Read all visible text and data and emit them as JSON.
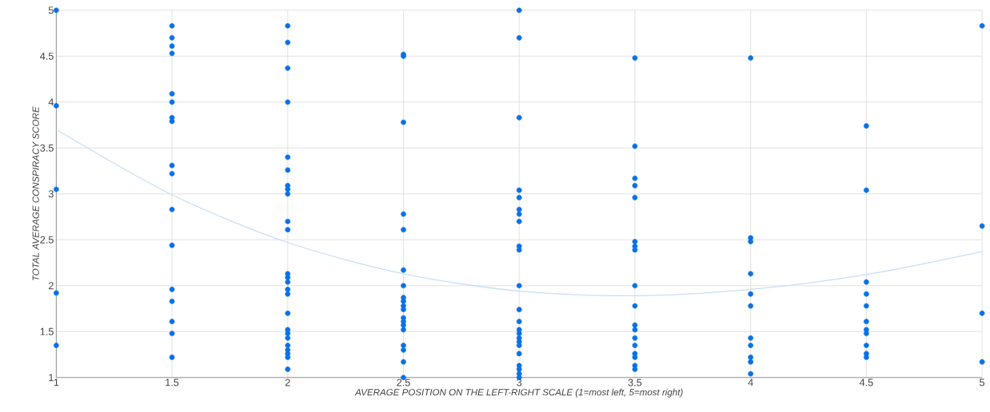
{
  "chart_data": {
    "type": "scatter",
    "xlabel": "AVERAGE POSITION ON THE LEFT-RIGHT SCALE (1=most left, 5=most right)",
    "ylabel": "TOTAL AVERAGE CONSPIRACY SCORE",
    "xlim": [
      1,
      5
    ],
    "ylim": [
      1,
      5
    ],
    "xticks": [
      1,
      1.5,
      2,
      2.5,
      3,
      3.5,
      4,
      4.5,
      5
    ],
    "yticks": [
      1,
      1.5,
      2,
      2.5,
      3,
      3.5,
      4,
      4.5,
      5
    ],
    "grid": true,
    "series": [
      {
        "color": "#0a72e8",
        "marker": "circle",
        "x": [
          1,
          1,
          1,
          1,
          1,
          1.5,
          1.5,
          1.5,
          1.5,
          1.5,
          1.5,
          1.5,
          1.5,
          1.5,
          1.5,
          1.5,
          1.5,
          1.5,
          1.5,
          1.5,
          1.5,
          1.5,
          2,
          2,
          2,
          2,
          2,
          2,
          2,
          2,
          2,
          2,
          2,
          2,
          2,
          2,
          2,
          2,
          2,
          2,
          2,
          2,
          2,
          2,
          2,
          2,
          2,
          2.5,
          2.5,
          2.5,
          2.5,
          2.5,
          2.5,
          2.5,
          2.5,
          2.5,
          2.5,
          2.5,
          2.5,
          2.5,
          2.5,
          2.5,
          2.5,
          2.5,
          2.5,
          2.5,
          3,
          3,
          3,
          3,
          3,
          3,
          3,
          3,
          3,
          3,
          3,
          3,
          3,
          3,
          3,
          3,
          3,
          3,
          3,
          3,
          3,
          3,
          3,
          3.5,
          3.5,
          3.5,
          3.5,
          3.5,
          3.5,
          3.5,
          3.5,
          3.5,
          3.5,
          3.5,
          3.5,
          3.5,
          3.5,
          3.5,
          3.5,
          3.5,
          3.5,
          4,
          4,
          4,
          4,
          4,
          4,
          4,
          4,
          4,
          4,
          4,
          4.5,
          4.5,
          4.5,
          4.5,
          4.5,
          4.5,
          4.5,
          4.5,
          4.5,
          4.5,
          4.5,
          5,
          5,
          5,
          5
        ],
        "values": [
          5,
          3.96,
          3.05,
          1.92,
          1.35,
          4.83,
          4.7,
          4.61,
          4.53,
          4.09,
          4,
          3.83,
          3.79,
          3.31,
          3.22,
          2.83,
          2.44,
          1.96,
          1.83,
          1.61,
          1.48,
          1.22,
          4.83,
          4.65,
          4.37,
          4,
          3.4,
          3.26,
          3.09,
          3.05,
          3,
          2.7,
          2.61,
          2.13,
          2.09,
          2.04,
          1.96,
          1.91,
          1.7,
          1.52,
          1.48,
          1.43,
          1.35,
          1.3,
          1.26,
          1.22,
          1.09,
          4.52,
          4.5,
          3.78,
          2.78,
          2.61,
          2.17,
          2,
          1.87,
          1.83,
          1.78,
          1.74,
          1.65,
          1.61,
          1.57,
          1.52,
          1.35,
          1.3,
          1.17,
          1,
          5,
          4.7,
          3.83,
          3.04,
          2.96,
          2.83,
          2.78,
          2.7,
          2.43,
          2.39,
          2,
          1.74,
          1.61,
          1.52,
          1.48,
          1.43,
          1.39,
          1.35,
          1.26,
          1.13,
          1.09,
          1.04,
          1,
          4.48,
          3.52,
          3.17,
          3.09,
          2.96,
          2.48,
          2.43,
          2.39,
          2,
          1.78,
          1.57,
          1.52,
          1.43,
          1.35,
          1.26,
          1.22,
          1.13,
          1.09,
          4.48,
          2.52,
          2.48,
          2.13,
          1.91,
          1.78,
          1.43,
          1.35,
          1.22,
          1.17,
          1.04,
          3.74,
          3.04,
          2.04,
          1.91,
          1.78,
          1.61,
          1.52,
          1.48,
          1.35,
          1.26,
          1.22,
          4.83,
          2.65,
          1.7,
          1.17
        ]
      },
      {
        "type": "line",
        "color": "#c9def8",
        "marker": "none",
        "x": [
          1,
          1.5,
          2,
          2.5,
          3,
          3.5,
          4,
          4.5,
          5
        ],
        "values": [
          3.7,
          2.99,
          2.47,
          2.13,
          1.94,
          1.89,
          1.96,
          2.12,
          2.37
        ]
      }
    ]
  }
}
